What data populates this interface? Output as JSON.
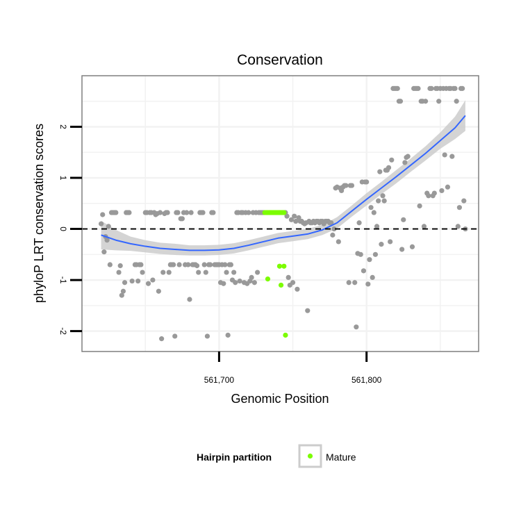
{
  "chart_data": {
    "type": "scatter",
    "title": "Conservation",
    "xlabel": "Genomic Position",
    "ylabel": "phyloP LRT conservation scores",
    "xlim": [
      561607,
      561876
    ],
    "ylim": [
      -2.4,
      3.0
    ],
    "x_ticks": [
      561700,
      561800
    ],
    "x_tick_labels": [
      "561,700",
      "561,800"
    ],
    "y_ticks": [
      -2,
      -1,
      0,
      1,
      2
    ],
    "y_tick_labels": [
      "-2",
      "-1",
      "0",
      "1",
      "2"
    ],
    "reference_line": {
      "y": 0,
      "style": "dashed"
    },
    "colors": {
      "other": "#999999",
      "mature": "#7cfc00",
      "smooth_line": "#3366ff",
      "confidence_band": "#cccccc"
    },
    "legend": {
      "title": "Hairpin partition",
      "entries": [
        {
          "label": "Mature",
          "color": "#7cfc00"
        }
      ],
      "position": "bottom"
    },
    "series": [
      {
        "name": "Other",
        "color": "#999999",
        "points": [
          [
            561620,
            0.1
          ],
          [
            561621,
            0.28
          ],
          [
            561622,
            -0.45
          ],
          [
            561623,
            -0.15
          ],
          [
            561624,
            -0.22
          ],
          [
            561625,
            0.05
          ],
          [
            561626,
            -0.7
          ],
          [
            561627,
            0.32
          ],
          [
            561628,
            0.32
          ],
          [
            561629,
            0.32
          ],
          [
            561630,
            0.32
          ],
          [
            561632,
            -0.85
          ],
          [
            561633,
            -0.72
          ],
          [
            561634,
            -1.3
          ],
          [
            561635,
            -1.22
          ],
          [
            561636,
            -1.05
          ],
          [
            561637,
            0.32
          ],
          [
            561638,
            0.32
          ],
          [
            561639,
            0.32
          ],
          [
            561641,
            -1.02
          ],
          [
            561643,
            -0.7
          ],
          [
            561644,
            -0.7
          ],
          [
            561645,
            -1.02
          ],
          [
            561646,
            -0.7
          ],
          [
            561647,
            -0.7
          ],
          [
            561648,
            -0.85
          ],
          [
            561650,
            0.32
          ],
          [
            561651,
            0.32
          ],
          [
            561652,
            -1.07
          ],
          [
            561653,
            0.32
          ],
          [
            561654,
            0.32
          ],
          [
            561655,
            -1.0
          ],
          [
            561656,
            0.32
          ],
          [
            561657,
            0.28
          ],
          [
            561658,
            0.3
          ],
          [
            561659,
            -1.22
          ],
          [
            561660,
            0.32
          ],
          [
            561661,
            -2.15
          ],
          [
            561662,
            -0.85
          ],
          [
            561663,
            0.3
          ],
          [
            561664,
            0.32
          ],
          [
            561665,
            0.32
          ],
          [
            561666,
            -0.85
          ],
          [
            561667,
            -0.7
          ],
          [
            561668,
            -0.7
          ],
          [
            561669,
            -0.7
          ],
          [
            561670,
            -2.1
          ],
          [
            561671,
            0.32
          ],
          [
            561672,
            0.32
          ],
          [
            561673,
            -0.7
          ],
          [
            561674,
            0.2
          ],
          [
            561675,
            0.2
          ],
          [
            561676,
            0.32
          ],
          [
            561677,
            -0.7
          ],
          [
            561678,
            0.32
          ],
          [
            561679,
            -0.7
          ],
          [
            561680,
            -1.38
          ],
          [
            561681,
            0.32
          ],
          [
            561682,
            -0.7
          ],
          [
            561683,
            -0.7
          ],
          [
            561684,
            -0.7
          ],
          [
            561685,
            -0.72
          ],
          [
            561686,
            -0.85
          ],
          [
            561687,
            0.32
          ],
          [
            561688,
            0.32
          ],
          [
            561689,
            0.32
          ],
          [
            561690,
            -0.7
          ],
          [
            561691,
            -0.85
          ],
          [
            561692,
            -2.1
          ],
          [
            561693,
            -0.7
          ],
          [
            561694,
            -0.7
          ],
          [
            561695,
            0.32
          ],
          [
            561696,
            0.32
          ],
          [
            561697,
            -0.7
          ],
          [
            561698,
            -0.7
          ],
          [
            561699,
            -0.7
          ],
          [
            561700,
            -0.7
          ],
          [
            561701,
            -1.05
          ],
          [
            561702,
            -0.7
          ],
          [
            561703,
            -1.07
          ],
          [
            561704,
            -0.7
          ],
          [
            561705,
            -0.85
          ],
          [
            561706,
            -2.08
          ],
          [
            561707,
            -0.7
          ],
          [
            561708,
            -0.7
          ],
          [
            561709,
            -1.0
          ],
          [
            561710,
            -0.85
          ],
          [
            561711,
            -1.05
          ],
          [
            561712,
            0.32
          ],
          [
            561713,
            0.32
          ],
          [
            561714,
            -1.02
          ],
          [
            561715,
            0.32
          ],
          [
            561716,
            0.32
          ],
          [
            561717,
            -1.05
          ],
          [
            561718,
            0.32
          ],
          [
            561719,
            -1.07
          ],
          [
            561720,
            0.32
          ],
          [
            561721,
            -1.02
          ],
          [
            561722,
            -0.95
          ],
          [
            561723,
            0.32
          ],
          [
            561724,
            -1.05
          ],
          [
            561725,
            0.32
          ],
          [
            561726,
            -0.85
          ],
          [
            561727,
            0.32
          ],
          [
            561728,
            0.32
          ],
          [
            561729,
            0.32
          ],
          [
            561730,
            0.32
          ],
          [
            561745,
            0.32
          ],
          [
            561746,
            0.25
          ],
          [
            561747,
            -0.95
          ],
          [
            561748,
            -1.1
          ],
          [
            561749,
            0.18
          ],
          [
            561750,
            -1.05
          ],
          [
            561751,
            0.25
          ],
          [
            561752,
            0.15
          ],
          [
            561753,
            -1.18
          ],
          [
            561754,
            0.22
          ],
          [
            561755,
            0.15
          ],
          [
            561756,
            0.15
          ],
          [
            561757,
            0.12
          ],
          [
            561758,
            0.1
          ],
          [
            561759,
            0.12
          ],
          [
            561760,
            -1.6
          ],
          [
            561761,
            0.15
          ],
          [
            561762,
            0.12
          ],
          [
            561763,
            0.12
          ],
          [
            561764,
            0.15
          ],
          [
            561765,
            0.12
          ],
          [
            561766,
            0.15
          ],
          [
            561767,
            0.15
          ],
          [
            561768,
            0.12
          ],
          [
            561769,
            0.15
          ],
          [
            561770,
            0.15
          ],
          [
            561771,
            0.1
          ],
          [
            561772,
            0.15
          ],
          [
            561773,
            0.15
          ],
          [
            561774,
            0.15
          ],
          [
            561775,
            0.12
          ],
          [
            561776,
            0.12
          ],
          [
            561777,
            -0.12
          ],
          [
            561778,
            0.0
          ],
          [
            561779,
            0.8
          ],
          [
            561780,
            0.82
          ],
          [
            561781,
            -0.25
          ],
          [
            561782,
            0.8
          ],
          [
            561783,
            0.75
          ],
          [
            561784,
            0.82
          ],
          [
            561785,
            0.85
          ],
          [
            561786,
            0.85
          ],
          [
            561788,
            -1.05
          ],
          [
            561789,
            0.85
          ],
          [
            561790,
            0.85
          ],
          [
            561792,
            -1.05
          ],
          [
            561793,
            -1.92
          ],
          [
            561794,
            -0.48
          ],
          [
            561795,
            0.12
          ],
          [
            561796,
            -0.5
          ],
          [
            561797,
            0.92
          ],
          [
            561798,
            -0.82
          ],
          [
            561799,
            0.92
          ],
          [
            561800,
            0.92
          ],
          [
            561801,
            -1.08
          ],
          [
            561802,
            -0.6
          ],
          [
            561803,
            0.42
          ],
          [
            561804,
            -0.95
          ],
          [
            561805,
            0.32
          ],
          [
            561806,
            -0.5
          ],
          [
            561807,
            0.05
          ],
          [
            561808,
            0.55
          ],
          [
            561809,
            1.12
          ],
          [
            561810,
            -0.3
          ],
          [
            561811,
            0.65
          ],
          [
            561812,
            0.55
          ],
          [
            561813,
            1.15
          ],
          [
            561814,
            1.15
          ],
          [
            561815,
            1.2
          ],
          [
            561816,
            -0.25
          ],
          [
            561817,
            1.35
          ],
          [
            561818,
            2.75
          ],
          [
            561819,
            2.75
          ],
          [
            561820,
            2.75
          ],
          [
            561821,
            2.75
          ],
          [
            561822,
            2.5
          ],
          [
            561823,
            2.5
          ],
          [
            561824,
            -0.4
          ],
          [
            561825,
            0.18
          ],
          [
            561826,
            1.3
          ],
          [
            561827,
            1.4
          ],
          [
            561828,
            1.42
          ],
          [
            561831,
            -0.35
          ],
          [
            561832,
            2.75
          ],
          [
            561833,
            2.75
          ],
          [
            561834,
            2.75
          ],
          [
            561835,
            2.75
          ],
          [
            561836,
            0.45
          ],
          [
            561837,
            2.5
          ],
          [
            561838,
            2.5
          ],
          [
            561839,
            0.05
          ],
          [
            561840,
            2.5
          ],
          [
            561841,
            0.7
          ],
          [
            561842,
            0.65
          ],
          [
            561843,
            2.75
          ],
          [
            561844,
            2.75
          ],
          [
            561845,
            0.65
          ],
          [
            561846,
            0.7
          ],
          [
            561847,
            2.75
          ],
          [
            561848,
            2.75
          ],
          [
            561849,
            2.5
          ],
          [
            561850,
            2.75
          ],
          [
            561851,
            0.75
          ],
          [
            561852,
            2.75
          ],
          [
            561853,
            1.45
          ],
          [
            561854,
            2.75
          ],
          [
            561855,
            0.82
          ],
          [
            561856,
            2.75
          ],
          [
            561857,
            2.75
          ],
          [
            561858,
            1.42
          ],
          [
            561859,
            2.75
          ],
          [
            561860,
            2.75
          ],
          [
            561861,
            2.5
          ],
          [
            561862,
            0.05
          ],
          [
            561863,
            0.42
          ],
          [
            561864,
            2.75
          ],
          [
            561865,
            2.75
          ],
          [
            561866,
            0.55
          ],
          [
            561867,
            0.0
          ]
        ]
      },
      {
        "name": "Mature",
        "color": "#7cfc00",
        "points": [
          [
            561731,
            0.32
          ],
          [
            561732,
            0.32
          ],
          [
            561733,
            0.32
          ],
          [
            561734,
            0.32
          ],
          [
            561735,
            0.32
          ],
          [
            561736,
            0.32
          ],
          [
            561737,
            0.32
          ],
          [
            561738,
            0.32
          ],
          [
            561739,
            0.32
          ],
          [
            561740,
            0.32
          ],
          [
            561741,
            0.32
          ],
          [
            561742,
            0.32
          ],
          [
            561743,
            0.32
          ],
          [
            561744,
            0.32
          ],
          [
            561733,
            -0.98
          ],
          [
            561741,
            -0.73
          ],
          [
            561742,
            -1.1
          ],
          [
            561744,
            -0.73
          ],
          [
            561745,
            -2.08
          ]
        ]
      }
    ],
    "smooth": {
      "method": "loess",
      "points": [
        [
          561620,
          -0.12
        ],
        [
          561630,
          -0.22
        ],
        [
          561640,
          -0.29
        ],
        [
          561650,
          -0.34
        ],
        [
          561660,
          -0.38
        ],
        [
          561670,
          -0.4
        ],
        [
          561680,
          -0.42
        ],
        [
          561690,
          -0.42
        ],
        [
          561700,
          -0.41
        ],
        [
          561710,
          -0.38
        ],
        [
          561720,
          -0.32
        ],
        [
          561730,
          -0.25
        ],
        [
          561740,
          -0.18
        ],
        [
          561750,
          -0.14
        ],
        [
          561760,
          -0.1
        ],
        [
          561770,
          -0.02
        ],
        [
          561780,
          0.12
        ],
        [
          561790,
          0.35
        ],
        [
          561800,
          0.58
        ],
        [
          561810,
          0.8
        ],
        [
          561820,
          1.02
        ],
        [
          561830,
          1.25
        ],
        [
          561840,
          1.48
        ],
        [
          561850,
          1.73
        ],
        [
          561860,
          1.98
        ],
        [
          561867,
          2.22
        ]
      ],
      "se": [
        0.28,
        0.2,
        0.14,
        0.12,
        0.11,
        0.11,
        0.1,
        0.1,
        0.1,
        0.1,
        0.1,
        0.1,
        0.1,
        0.1,
        0.1,
        0.1,
        0.11,
        0.11,
        0.12,
        0.12,
        0.13,
        0.13,
        0.14,
        0.16,
        0.22,
        0.3
      ]
    }
  }
}
